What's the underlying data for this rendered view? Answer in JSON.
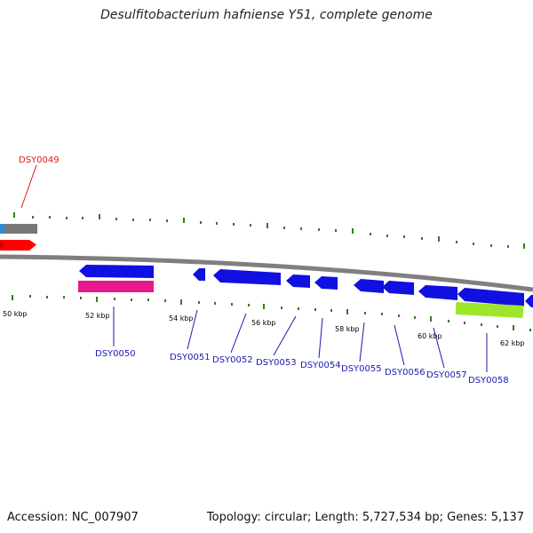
{
  "title": "Desulfitobacterium hafniense Y51, complete genome",
  "accession": "Accession: NC_007907",
  "stats": "Topology: circular; Length: 5,727,534 bp; Genes: 5,137",
  "colors": {
    "backbone": "#8a8a8a",
    "tick": "#2e7d1e",
    "gene_blue": "#1010e0",
    "rna_pink": "#e8198c",
    "lime": "#9ee62a",
    "red": "#ff0000",
    "gray_bar": "#7a7a7a",
    "label_blue": "#1a1ab0",
    "label_red": "#d81818"
  },
  "scale_labels": [
    "50 kbp",
    "52 kbp",
    "54 kbp",
    "56 kbp",
    "58 kbp",
    "60 kbp",
    "62 kbp"
  ],
  "genes": {
    "DSY0049": "DSY0049",
    "DSY0050": "DSY0050",
    "DSY0051": "DSY0051",
    "DSY0052": "DSY0052",
    "DSY0053": "DSY0053",
    "DSY0054": "DSY0054",
    "DSY0055": "DSY0055",
    "DSY0056": "DSY0056",
    "DSY0057": "DSY0057",
    "DSY0058": "DSY0058"
  }
}
